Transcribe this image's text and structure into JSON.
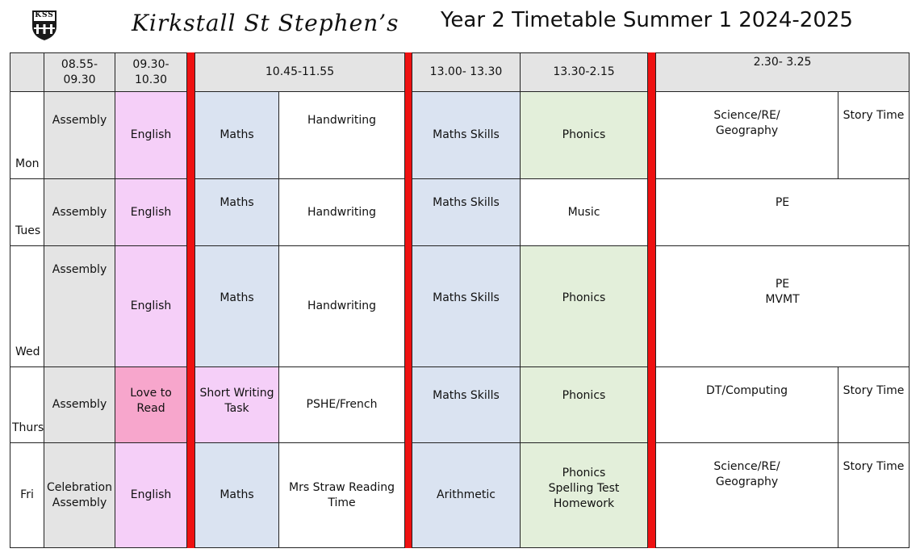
{
  "header": {
    "school": "Kirkstall St Stephen’s",
    "title": "Year 2 Timetable Summer 1 2024-2025",
    "logo_letters": "KSS"
  },
  "times": [
    "08.55-\n09.30",
    "09.30-\n10.30",
    "10.45-11.55",
    "13.00- 13.30",
    "13.30-2.15",
    "2.30- 3.25"
  ],
  "days": {
    "mon": {
      "day": "Mon",
      "assembly": "Assembly",
      "english": "English",
      "maths": "Maths",
      "handwriting": "Handwriting",
      "maths_skills": "Maths Skills",
      "phonics": "Phonics",
      "afternoon": "Science/RE/\nGeography",
      "story": "Story Time"
    },
    "tues": {
      "day": "Tues",
      "assembly": "Assembly",
      "english": "English",
      "maths": "Maths",
      "handwriting": "Handwriting",
      "maths_skills": "Maths Skills",
      "music": "Music",
      "afternoon": "PE"
    },
    "wed": {
      "day": "Wed",
      "assembly": "Assembly",
      "english": "English",
      "maths": "Maths",
      "handwriting": "Handwriting",
      "maths_skills": "Maths Skills",
      "phonics": "Phonics",
      "afternoon": "PE\nMVMT"
    },
    "thurs": {
      "day": "Thurs",
      "assembly": "Assembly",
      "love_read": "Love to\nRead",
      "short_writing": "Short Writing\nTask",
      "pshe": "PSHE/French",
      "maths_skills": "Maths Skills",
      "phonics": "Phonics",
      "afternoon": "DT/Computing",
      "story": "Story Time"
    },
    "fri": {
      "day": "Fri",
      "assembly": "Celebration\nAssembly",
      "english": "English",
      "maths": "Maths",
      "reading": "Mrs Straw Reading\nTime",
      "arithmetic": "Arithmetic",
      "phonics": "Phonics\nSpelling Test\nHomework",
      "afternoon": "Science/RE/\nGeography",
      "story": "Story Time"
    }
  },
  "colors": {
    "assembly": "#e4e4e4",
    "english": "#f5cff8",
    "love_to_read": "#f7a6cc",
    "maths": "#dae3f1",
    "phonics": "#e3efda",
    "break": "#ee1111"
  }
}
